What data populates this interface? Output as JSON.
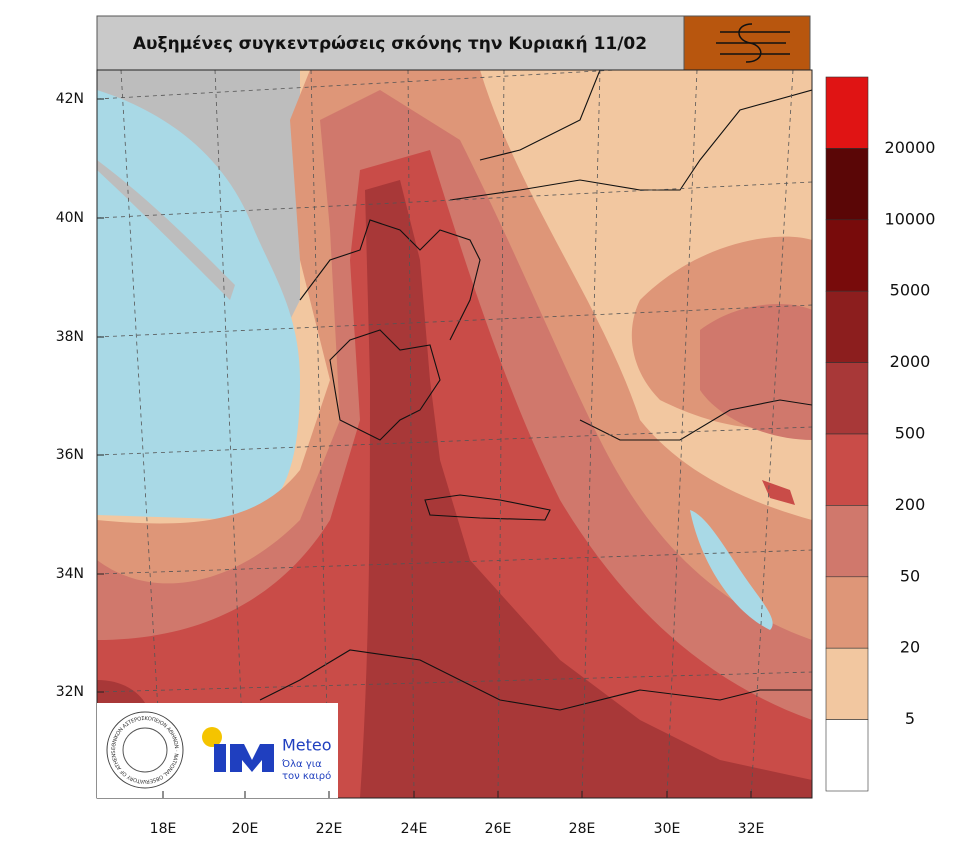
{
  "header": {
    "title": "Αυξημένες συγκεντρώσεις σκόνης την Κυριακή 11/02"
  },
  "map": {
    "lat_labels": [
      "42N",
      "40N",
      "38N",
      "36N",
      "34N",
      "32N"
    ],
    "lon_labels": [
      "18E",
      "20E",
      "22E",
      "24E",
      "26E",
      "28E",
      "30E",
      "32E"
    ]
  },
  "colorbar": {
    "labels": [
      "20000",
      "10000",
      "5000",
      "2000",
      "500",
      "200",
      "50",
      "20",
      "5"
    ],
    "colors": [
      "#e01414",
      "#5a0606",
      "#780b0b",
      "#8c1e1e",
      "#a83838",
      "#c94c48",
      "#d0786c",
      "#de9678",
      "#f2c7a0",
      "#ffffff"
    ]
  },
  "logos": {
    "seal_text": "ΕΘΝΙΚΟΝ ΑΣΤΕΡΟΣΚΟΠΕΙΟΝ ΑΘΗΝΩΝ · NATIONAL OBSERVATORY OF ATHENS",
    "brand": "Meteo",
    "tagline_1": "Όλα για",
    "tagline_2": "τον καιρό"
  }
}
